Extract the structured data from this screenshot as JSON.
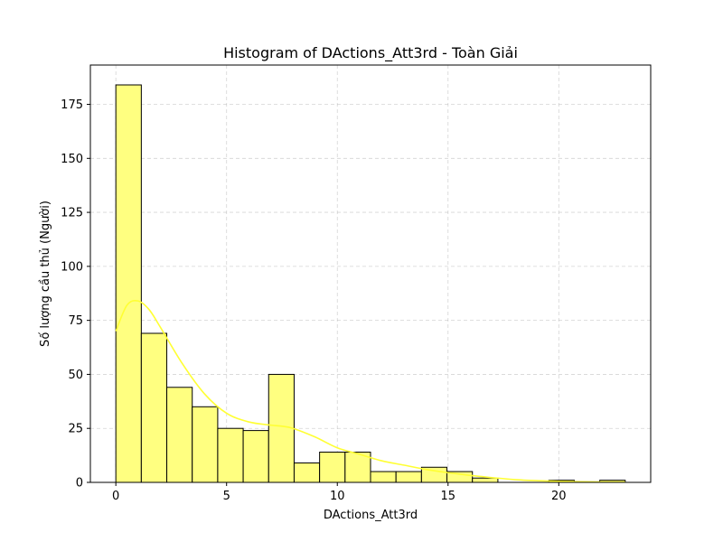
{
  "chart_data": {
    "type": "bar",
    "title": "Histogram of DActions_Att3rd - Toàn Giải",
    "xlabel": "DActions_Att3rd",
    "ylabel": "Số lượng cầu thủ (Người)",
    "bin_edges": [
      0,
      1.15,
      2.3,
      3.45,
      4.6,
      5.75,
      6.9,
      8.05,
      9.2,
      10.35,
      11.5,
      12.65,
      13.8,
      14.95,
      16.1,
      17.25,
      18.4,
      19.55,
      20.7,
      21.85,
      23
    ],
    "values": [
      184,
      69,
      44,
      35,
      25,
      24,
      50,
      9,
      14,
      14,
      5,
      5,
      7,
      5,
      2,
      0,
      0,
      1,
      0,
      1
    ],
    "kde": {
      "x": [
        0,
        0.5,
        1,
        1.5,
        2,
        3,
        4,
        5,
        6,
        7,
        7.5,
        8,
        9,
        10,
        11,
        12,
        13,
        14,
        15,
        16,
        17,
        18,
        19,
        20,
        21,
        22,
        23
      ],
      "y": [
        70,
        82,
        84,
        80,
        72,
        55,
        41,
        32,
        28,
        26.5,
        26,
        25,
        21,
        16,
        13,
        10,
        8,
        6,
        4.5,
        3.2,
        2.2,
        1.3,
        0.8,
        0.5,
        0.3,
        0.2,
        0.15
      ]
    },
    "xlim": [
      -1.15,
      24.15
    ],
    "ylim": [
      0,
      193.2
    ],
    "xticks": [
      0,
      5,
      10,
      15,
      20
    ],
    "yticks": [
      0,
      25,
      50,
      75,
      100,
      125,
      150,
      175
    ],
    "grid": true,
    "bar_color": "#ffff80",
    "bar_edge_color": "#000000",
    "kde_color": "#ffff33"
  }
}
